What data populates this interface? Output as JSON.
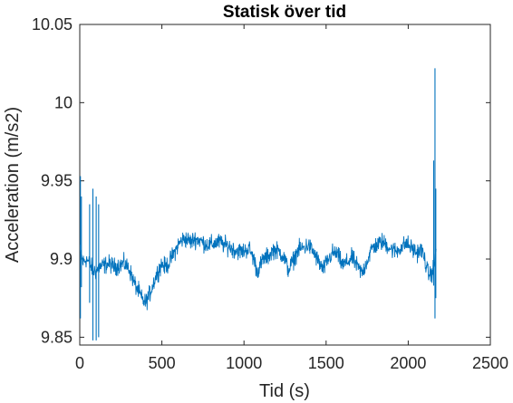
{
  "chart_data": {
    "type": "line",
    "title": "Statisk över tid",
    "xlabel": "Tid (s)",
    "ylabel": "Acceleration (m/s2)",
    "xlim": [
      0,
      2500
    ],
    "ylim": [
      9.845,
      10.05
    ],
    "xticks": [
      0,
      500,
      1000,
      1500,
      2000,
      2500
    ],
    "xtick_labels": [
      "0",
      "500",
      "1000",
      "1500",
      "2000",
      "2500"
    ],
    "yticks": [
      9.85,
      9.9,
      9.95,
      10,
      10.05
    ],
    "ytick_labels": [
      "9.85",
      "9.9",
      "9.95",
      "10",
      "10.05"
    ],
    "grid": false,
    "line_color": "#0072BD",
    "series": [
      {
        "x": [
          0,
          20,
          40,
          60,
          80,
          100,
          120,
          150,
          180,
          210,
          240,
          270,
          300,
          330,
          360,
          380,
          400,
          420,
          440,
          460,
          480,
          500,
          520,
          540,
          560,
          580,
          600,
          620,
          640,
          660,
          680,
          700,
          730,
          760,
          790,
          820,
          850,
          880,
          910,
          940,
          970,
          1000,
          1030,
          1060,
          1080,
          1100,
          1120,
          1150,
          1180,
          1210,
          1240,
          1270,
          1300,
          1330,
          1360,
          1390,
          1420,
          1450,
          1480,
          1510,
          1540,
          1570,
          1600,
          1630,
          1660,
          1690,
          1720,
          1750,
          1780,
          1810,
          1840,
          1870,
          1900,
          1930,
          1960,
          1990,
          2020,
          2050,
          2080,
          2100,
          2120,
          2140,
          2155,
          2165,
          2170
        ],
        "y": [
          9.905,
          9.898,
          9.9,
          9.897,
          9.893,
          9.892,
          9.895,
          9.896,
          9.897,
          9.895,
          9.896,
          9.897,
          9.894,
          9.885,
          9.879,
          9.874,
          9.872,
          9.876,
          9.882,
          9.888,
          9.893,
          9.897,
          9.895,
          9.897,
          9.901,
          9.905,
          9.909,
          9.912,
          9.913,
          9.912,
          9.911,
          9.913,
          9.912,
          9.91,
          9.909,
          9.91,
          9.911,
          9.909,
          9.908,
          9.906,
          9.905,
          9.905,
          9.907,
          9.9,
          9.892,
          9.896,
          9.9,
          9.902,
          9.906,
          9.905,
          9.902,
          9.893,
          9.899,
          9.906,
          9.907,
          9.909,
          9.905,
          9.899,
          9.893,
          9.899,
          9.904,
          9.903,
          9.896,
          9.898,
          9.901,
          9.895,
          9.891,
          9.899,
          9.907,
          9.909,
          9.911,
          9.909,
          9.906,
          9.905,
          9.908,
          9.91,
          9.907,
          9.904,
          9.906,
          9.9,
          9.891,
          9.89,
          9.895,
          9.903,
          9.905
        ],
        "noise_amplitude": 0.004
      }
    ],
    "spikes": [
      {
        "x": 4,
        "high": 9.953,
        "low": 9.862
      },
      {
        "x": 10,
        "high": 9.94,
        "low": 9.882
      },
      {
        "x": 60,
        "high": 9.935,
        "low": 9.872
      },
      {
        "x": 80,
        "high": 9.945,
        "low": 9.848
      },
      {
        "x": 100,
        "high": 9.94,
        "low": 9.848
      },
      {
        "x": 115,
        "high": 9.935,
        "low": 9.85
      },
      {
        "x": 2155,
        "high": 9.963,
        "low": 9.883
      },
      {
        "x": 2163,
        "high": 10.022,
        "low": 9.862
      },
      {
        "x": 2168,
        "high": 9.945,
        "low": 9.875
      }
    ]
  }
}
